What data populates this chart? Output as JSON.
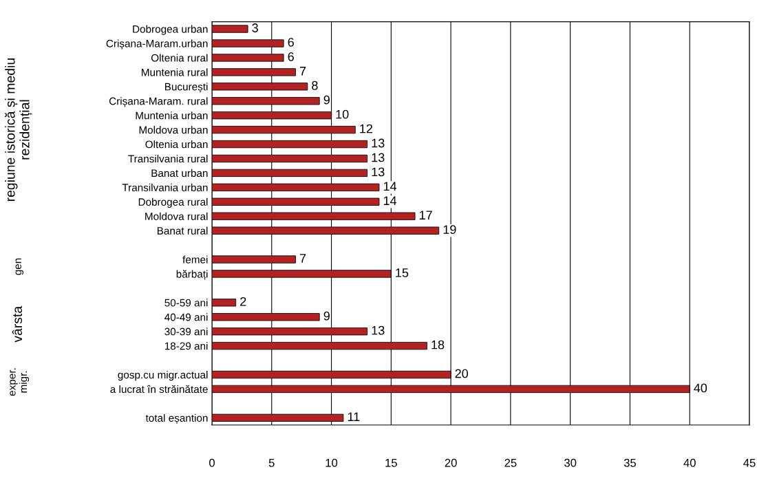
{
  "chart_data": {
    "type": "bar",
    "orientation": "horizontal",
    "categories": [
      "Dobrogea urban",
      "Crișana-Maram.urban",
      "Oltenia rural",
      "Muntenia rural",
      "București",
      "Crișana-Maram. rural",
      "Muntenia urban",
      "Moldova urban",
      "Oltenia urban",
      "Transilvania rural",
      "Banat urban",
      "Transilvania urban",
      "Dobrogea rural",
      "Moldova rural",
      "Banat rural",
      null,
      "femei",
      "bărbați",
      null,
      "50-59 ani",
      "40-49 ani",
      "30-39 ani",
      "18-29 ani",
      null,
      "gosp.cu migr.actual",
      "a lucrat în străinătate",
      null,
      "total eșantion"
    ],
    "values": [
      3,
      6,
      6,
      7,
      8,
      9,
      10,
      12,
      13,
      13,
      13,
      14,
      14,
      17,
      19,
      null,
      7,
      15,
      null,
      2,
      9,
      13,
      18,
      null,
      20,
      40,
      null,
      11
    ],
    "color": "#b22222",
    "xlim": [
      0,
      45
    ],
    "xticks": [
      0,
      5,
      10,
      15,
      20,
      25,
      30,
      35,
      40,
      45
    ],
    "grid": "x",
    "data_labels": true,
    "legend": false,
    "annotations": [
      "regiune istorică și mediu\nrezidențial",
      "gen",
      "vârsta",
      "exper.\nmigr."
    ]
  }
}
